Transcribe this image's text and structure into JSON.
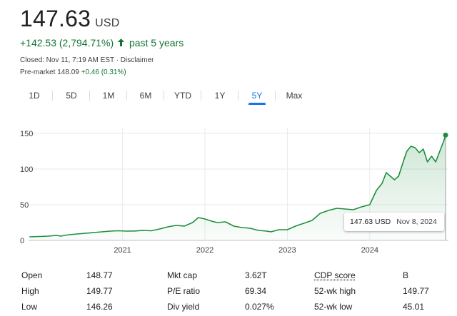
{
  "quote": {
    "price": "147.63",
    "currency": "USD",
    "change": "+142.53 (2,794.71%)",
    "change_arrow_icon": "arrow-up-icon",
    "period_label": "past 5 years",
    "closed_info": "Closed: Nov 11, 7:19 AM EST · Disclaimer",
    "premarket_label": "Pre-market 148.09",
    "premarket_change": "+0.46 (0.31%)"
  },
  "ranges": [
    "1D",
    "5D",
    "1M",
    "6M",
    "YTD",
    "1Y",
    "5Y",
    "Max"
  ],
  "active_range": "5Y",
  "colors": {
    "line": "#1e8e3e",
    "positive": "#137333",
    "accent": "#1a73e8"
  },
  "tooltip": {
    "value": "147.63 USD",
    "date": "Nov 8, 2024"
  },
  "chart_data": {
    "type": "area",
    "y_ticks": [
      "150",
      "100",
      "50",
      "0"
    ],
    "x_ticks": [
      "2021",
      "2022",
      "2023",
      "2024"
    ],
    "ylim": [
      0,
      150
    ],
    "xlim": [
      2019.86,
      2024.92
    ],
    "grid": true,
    "series": [
      {
        "x": [
          2019.87,
          2020.0,
          2020.1,
          2020.2,
          2020.25,
          2020.35,
          2020.45,
          2020.55,
          2020.65,
          2020.75,
          2020.85,
          2020.95,
          2021.05,
          2021.15,
          2021.25,
          2021.35,
          2021.45,
          2021.55,
          2021.65,
          2021.75,
          2021.85,
          2021.92,
          2022.0,
          2022.08,
          2022.15,
          2022.25,
          2022.35,
          2022.45,
          2022.55,
          2022.65,
          2022.75,
          2022.8,
          2022.9,
          2023.0,
          2023.1,
          2023.2,
          2023.3,
          2023.4,
          2023.5,
          2023.6,
          2023.7,
          2023.8,
          2023.9,
          2024.0,
          2024.08,
          2024.15,
          2024.2,
          2024.3,
          2024.35,
          2024.42,
          2024.45,
          2024.5,
          2024.55,
          2024.6,
          2024.65,
          2024.7,
          2024.75,
          2024.8,
          2024.85,
          2024.9,
          2024.92
        ],
        "values": [
          5,
          5.5,
          6,
          7,
          6,
          8,
          9,
          10,
          11,
          12,
          13,
          13.5,
          13,
          13.2,
          14,
          13.5,
          16,
          19,
          21,
          20,
          25,
          32,
          30,
          27,
          25,
          26,
          20,
          18,
          17,
          14,
          13,
          12,
          15,
          15,
          20,
          24,
          28,
          38,
          42,
          45,
          44,
          43,
          47,
          50,
          70,
          80,
          95,
          85,
          90,
          115,
          125,
          132,
          130,
          123,
          128,
          110,
          118,
          110,
          125,
          140,
          147.63
        ]
      }
    ]
  },
  "stats": {
    "col1": [
      {
        "label": "Open",
        "value": "148.77"
      },
      {
        "label": "High",
        "value": "149.77"
      },
      {
        "label": "Low",
        "value": "146.26"
      }
    ],
    "col2": [
      {
        "label": "Mkt cap",
        "value": "3.62T"
      },
      {
        "label": "P/E ratio",
        "value": "69.34"
      },
      {
        "label": "Div yield",
        "value": "0.027%"
      }
    ],
    "col3": [
      {
        "label": "CDP score",
        "value": "B"
      },
      {
        "label": "52-wk high",
        "value": "149.77"
      },
      {
        "label": "52-wk low",
        "value": "45.01"
      }
    ]
  }
}
